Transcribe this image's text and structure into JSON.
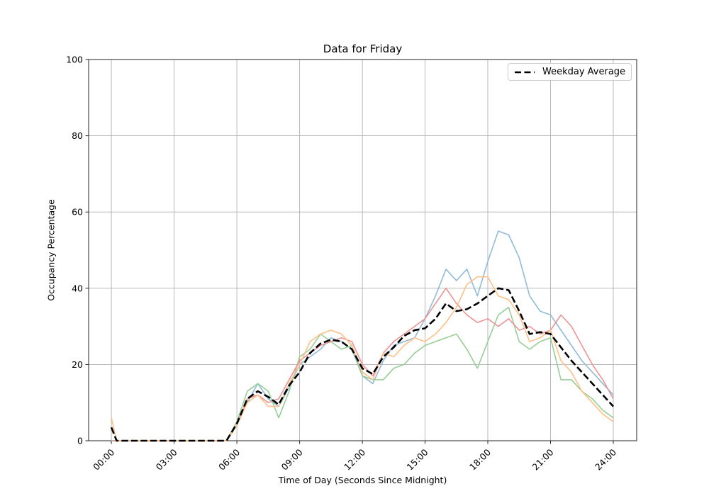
{
  "chart_data": {
    "type": "line",
    "title": "Data for Friday",
    "xlabel": "Time of Day (Seconds Since Midnight)",
    "ylabel": "Occupancy Percentage",
    "background": "#ffffff",
    "grid": true,
    "grid_color": "#b0b0b0",
    "axis_color": "#262626",
    "tick_label_color": "#000000",
    "ylim": [
      0,
      100
    ],
    "xlim_hours": [
      -1.09,
      25.12
    ],
    "yticks": [
      0,
      20,
      40,
      60,
      80,
      100
    ],
    "xtick_hours": [
      0,
      3,
      6,
      9,
      12,
      15,
      18,
      21,
      24
    ],
    "xtick_labels": [
      "00:00",
      "03:00",
      "06:00",
      "09:00",
      "12:00",
      "15:00",
      "18:00",
      "21:00",
      "24:00"
    ],
    "legend": {
      "position": "upper-right",
      "label": "Weekday Average",
      "line_style": "dashed",
      "color": "#000000"
    },
    "x_hours": [
      0,
      0.25,
      0.5,
      1,
      1.5,
      2,
      2.5,
      3,
      3.5,
      4,
      4.5,
      5,
      5.5,
      6,
      6.5,
      7,
      7.5,
      8,
      8.5,
      9,
      9.5,
      10,
      10.5,
      11,
      11.5,
      12,
      12.5,
      13,
      13.5,
      14,
      14.5,
      15,
      15.5,
      16,
      16.5,
      17,
      17.5,
      18,
      18.5,
      19,
      19.5,
      20,
      20.5,
      21,
      21.5,
      22,
      22.5,
      23,
      23.5,
      24
    ],
    "series": [
      {
        "name": "day-line-blue",
        "color": "#8fbbd9",
        "dash": "none",
        "width": 1.6,
        "values": [
          0,
          0,
          0,
          0,
          0,
          0,
          0,
          0,
          0,
          0,
          0,
          0,
          0,
          5,
          10,
          15,
          11,
          9,
          14,
          20,
          22,
          24,
          27,
          26,
          24,
          17,
          15,
          21,
          25,
          26,
          27,
          32,
          38,
          45,
          42,
          45,
          38,
          47,
          55,
          54,
          48,
          38,
          34,
          33,
          29,
          25,
          21,
          18,
          15,
          12
        ]
      },
      {
        "name": "day-line-green",
        "color": "#95cf95",
        "dash": "none",
        "width": 1.6,
        "values": [
          0,
          0,
          0,
          0,
          0,
          0,
          0,
          0,
          0,
          0,
          0,
          0,
          0,
          5,
          13,
          15,
          13,
          6,
          13,
          22,
          24,
          28,
          26,
          24,
          25,
          17,
          16,
          16,
          19,
          20,
          23,
          25,
          26,
          27,
          28,
          24,
          19,
          26,
          33,
          35,
          26,
          24,
          26,
          27,
          16,
          16,
          13,
          11,
          8,
          6
        ]
      },
      {
        "name": "day-line-red",
        "color": "#eb9394",
        "dash": "none",
        "width": 1.6,
        "values": [
          0,
          0,
          0,
          0,
          0,
          0,
          0,
          0,
          0,
          0,
          0,
          0,
          0,
          4,
          11,
          12,
          10,
          11,
          16,
          21,
          23,
          25,
          26,
          27,
          26,
          20,
          17,
          23,
          26,
          28,
          30,
          32,
          36,
          40,
          36,
          33,
          31,
          32,
          30,
          32,
          29,
          30,
          28,
          29,
          33,
          30,
          25,
          20,
          16,
          11
        ]
      },
      {
        "name": "day-line-orange",
        "color": "#ffbf86",
        "dash": "none",
        "width": 1.6,
        "values": [
          6,
          0,
          0,
          0,
          0,
          0,
          0,
          0,
          0,
          0,
          0,
          0,
          0,
          4,
          10,
          12,
          9,
          9,
          15,
          20,
          26,
          28,
          29,
          28,
          25,
          18,
          16,
          23,
          22,
          25,
          27,
          26,
          28,
          31,
          35,
          41,
          43,
          43,
          38,
          37,
          33,
          26,
          27,
          29,
          21,
          18,
          13,
          10,
          7,
          5
        ]
      },
      {
        "name": "weekday-average-line",
        "label": "Weekday Average",
        "color": "#000000",
        "dash": "9.5 4",
        "width": 2.6,
        "values": [
          3.5,
          0,
          0,
          0,
          0,
          0,
          0,
          0,
          0,
          0,
          0,
          0,
          0,
          4.5,
          11,
          13,
          11.5,
          9.5,
          14.5,
          18,
          23,
          25.5,
          26.5,
          26,
          24,
          19,
          17.5,
          22,
          24.5,
          27.5,
          29,
          29.5,
          32,
          36,
          34,
          34.5,
          36,
          38,
          40,
          39.5,
          34,
          28,
          28.5,
          28,
          24.5,
          21,
          18,
          15,
          12,
          9
        ]
      }
    ]
  }
}
